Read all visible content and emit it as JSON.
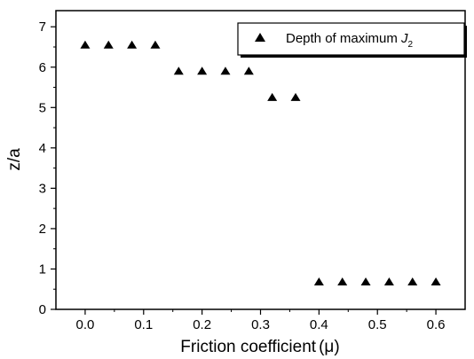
{
  "chart_data": {
    "type": "scatter",
    "xlabel": "Friction coefficient",
    "xlabel_unit": "(μ)",
    "ylabel": "z/a",
    "xlim": [
      -0.05,
      0.65
    ],
    "ylim": [
      0,
      7.4
    ],
    "x_ticks": [
      "0.0",
      "0.1",
      "0.2",
      "0.3",
      "0.4",
      "0.5",
      "0.6"
    ],
    "x_tick_values": [
      0.0,
      0.1,
      0.2,
      0.3,
      0.4,
      0.5,
      0.6
    ],
    "y_ticks": [
      "0",
      "1",
      "2",
      "3",
      "4",
      "5",
      "6",
      "7"
    ],
    "y_tick_values": [
      0,
      1,
      2,
      3,
      4,
      5,
      6,
      7
    ],
    "grid": false,
    "legend_position": "top-right",
    "series": [
      {
        "name": "Depth of maximum J2",
        "legend_text": "Depth of maximum ",
        "legend_var": "J",
        "legend_sub": "2",
        "marker": "triangle",
        "color": "#000000",
        "points": [
          {
            "x": 0.0,
            "y": 6.55
          },
          {
            "x": 0.04,
            "y": 6.55
          },
          {
            "x": 0.08,
            "y": 6.55
          },
          {
            "x": 0.12,
            "y": 6.55
          },
          {
            "x": 0.16,
            "y": 5.9
          },
          {
            "x": 0.2,
            "y": 5.9
          },
          {
            "x": 0.24,
            "y": 5.9
          },
          {
            "x": 0.28,
            "y": 5.9
          },
          {
            "x": 0.32,
            "y": 5.25
          },
          {
            "x": 0.36,
            "y": 5.25
          },
          {
            "x": 0.4,
            "y": 0.68
          },
          {
            "x": 0.44,
            "y": 0.68
          },
          {
            "x": 0.48,
            "y": 0.68
          },
          {
            "x": 0.52,
            "y": 0.68
          },
          {
            "x": 0.56,
            "y": 0.68
          },
          {
            "x": 0.6,
            "y": 0.68
          }
        ]
      }
    ]
  }
}
